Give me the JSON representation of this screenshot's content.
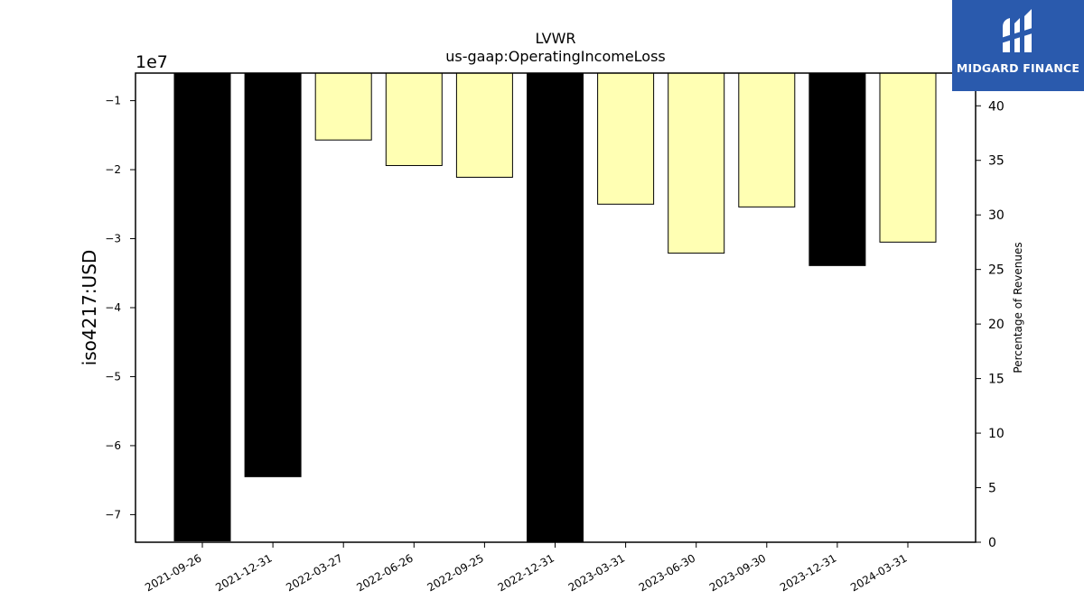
{
  "logo": {
    "text": "MIDGARD FINANCE",
    "icon": "midgard-logo-icon",
    "background": "#2a5aad"
  },
  "chart_data": {
    "type": "bar",
    "title": "LVWR",
    "subtitle": "us-gaap:OperatingIncomeLoss",
    "ylabel": "iso4217:USD",
    "y_offset_label": "1e7",
    "y2label": "Percentage of Revenues",
    "categories": [
      "2021-09-26",
      "2021-12-31",
      "2022-03-27",
      "2022-06-26",
      "2022-09-25",
      "2022-12-31",
      "2023-03-31",
      "2023-06-30",
      "2023-09-30",
      "2023-12-31",
      "2024-03-31"
    ],
    "values": [
      -73800000,
      -64500000,
      -15700000,
      -19400000,
      -21100000,
      -74800000,
      -25000000,
      -32100000,
      -25400000,
      -33900000,
      -30500000
    ],
    "bar_colors": [
      "#000000",
      "#000000",
      "#ffffb3",
      "#ffffb3",
      "#ffffb3",
      "#000000",
      "#ffffb3",
      "#ffffb3",
      "#ffffb3",
      "#000000",
      "#ffffb3"
    ],
    "ylim": [
      -74000000,
      -6000000
    ],
    "yticks": [
      -10000000,
      -20000000,
      -30000000,
      -40000000,
      -50000000,
      -60000000,
      -70000000
    ],
    "ytick_labels": [
      "−1",
      "−2",
      "−3",
      "−4",
      "−5",
      "−6",
      "−7"
    ],
    "y2lim": [
      0,
      43
    ],
    "y2ticks": [
      0,
      5,
      10,
      15,
      20,
      25,
      30,
      35,
      40
    ],
    "y2tick_labels": [
      "0",
      "5",
      "10",
      "15",
      "20",
      "25",
      "30",
      "35",
      "40"
    ],
    "grid": false
  }
}
